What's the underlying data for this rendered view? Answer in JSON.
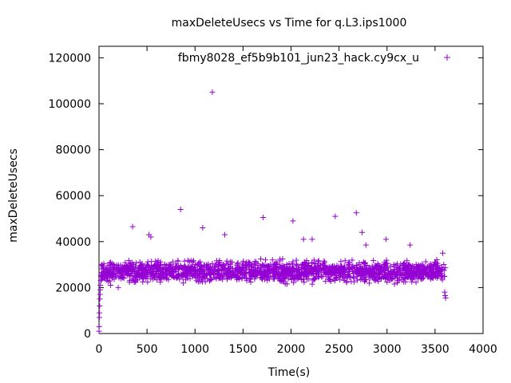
{
  "chart_data": {
    "type": "scatter",
    "title": "maxDeleteUsecs vs Time for q.L3.ips1000",
    "xlabel": "Time(s)",
    "ylabel": "maxDeleteUsecs",
    "xlim": [
      0,
      4000
    ],
    "ylim": [
      0,
      125000
    ],
    "x_ticks": [
      "0",
      "500",
      "1000",
      "1500",
      "2000",
      "2500",
      "3000",
      "3500",
      "4000"
    ],
    "y_ticks": [
      "0",
      "20000",
      "40000",
      "60000",
      "80000",
      "100000",
      "120000"
    ],
    "grid": false,
    "legend_position": "top-right",
    "marker": "+",
    "series": [
      {
        "name": "fbmy8028_ef5b9b101_jun23_hack.cy9cx_u",
        "color": "#9400d3",
        "points": [
          [
            0,
            1000
          ],
          [
            2,
            3000
          ],
          [
            4,
            7000
          ],
          [
            5,
            9000
          ],
          [
            7,
            12000
          ],
          [
            9,
            15000
          ],
          [
            11,
            17000
          ],
          [
            13,
            19000
          ],
          [
            15,
            21000
          ],
          [
            18,
            23000
          ],
          [
            20,
            25000
          ],
          [
            25,
            26000
          ],
          [
            120,
            21000
          ],
          [
            200,
            20000
          ],
          [
            350,
            46500
          ],
          [
            520,
            43000
          ],
          [
            540,
            42000
          ],
          [
            850,
            54000
          ],
          [
            1080,
            46000
          ],
          [
            1180,
            105000
          ],
          [
            1310,
            43000
          ],
          [
            1710,
            50500
          ],
          [
            2020,
            49000
          ],
          [
            2130,
            41000
          ],
          [
            2220,
            41000
          ],
          [
            2460,
            51000
          ],
          [
            2680,
            52500
          ],
          [
            2740,
            44000
          ],
          [
            2780,
            38500
          ],
          [
            2990,
            41000
          ],
          [
            3240,
            38500
          ],
          [
            3580,
            35000
          ],
          [
            3600,
            18000
          ],
          [
            3605,
            16500
          ],
          [
            3610,
            15500
          ]
        ],
        "band": {
          "x_range": [
            20,
            3610
          ],
          "y_center": 27000,
          "y_spread": 4500,
          "count": 1800
        }
      }
    ]
  }
}
